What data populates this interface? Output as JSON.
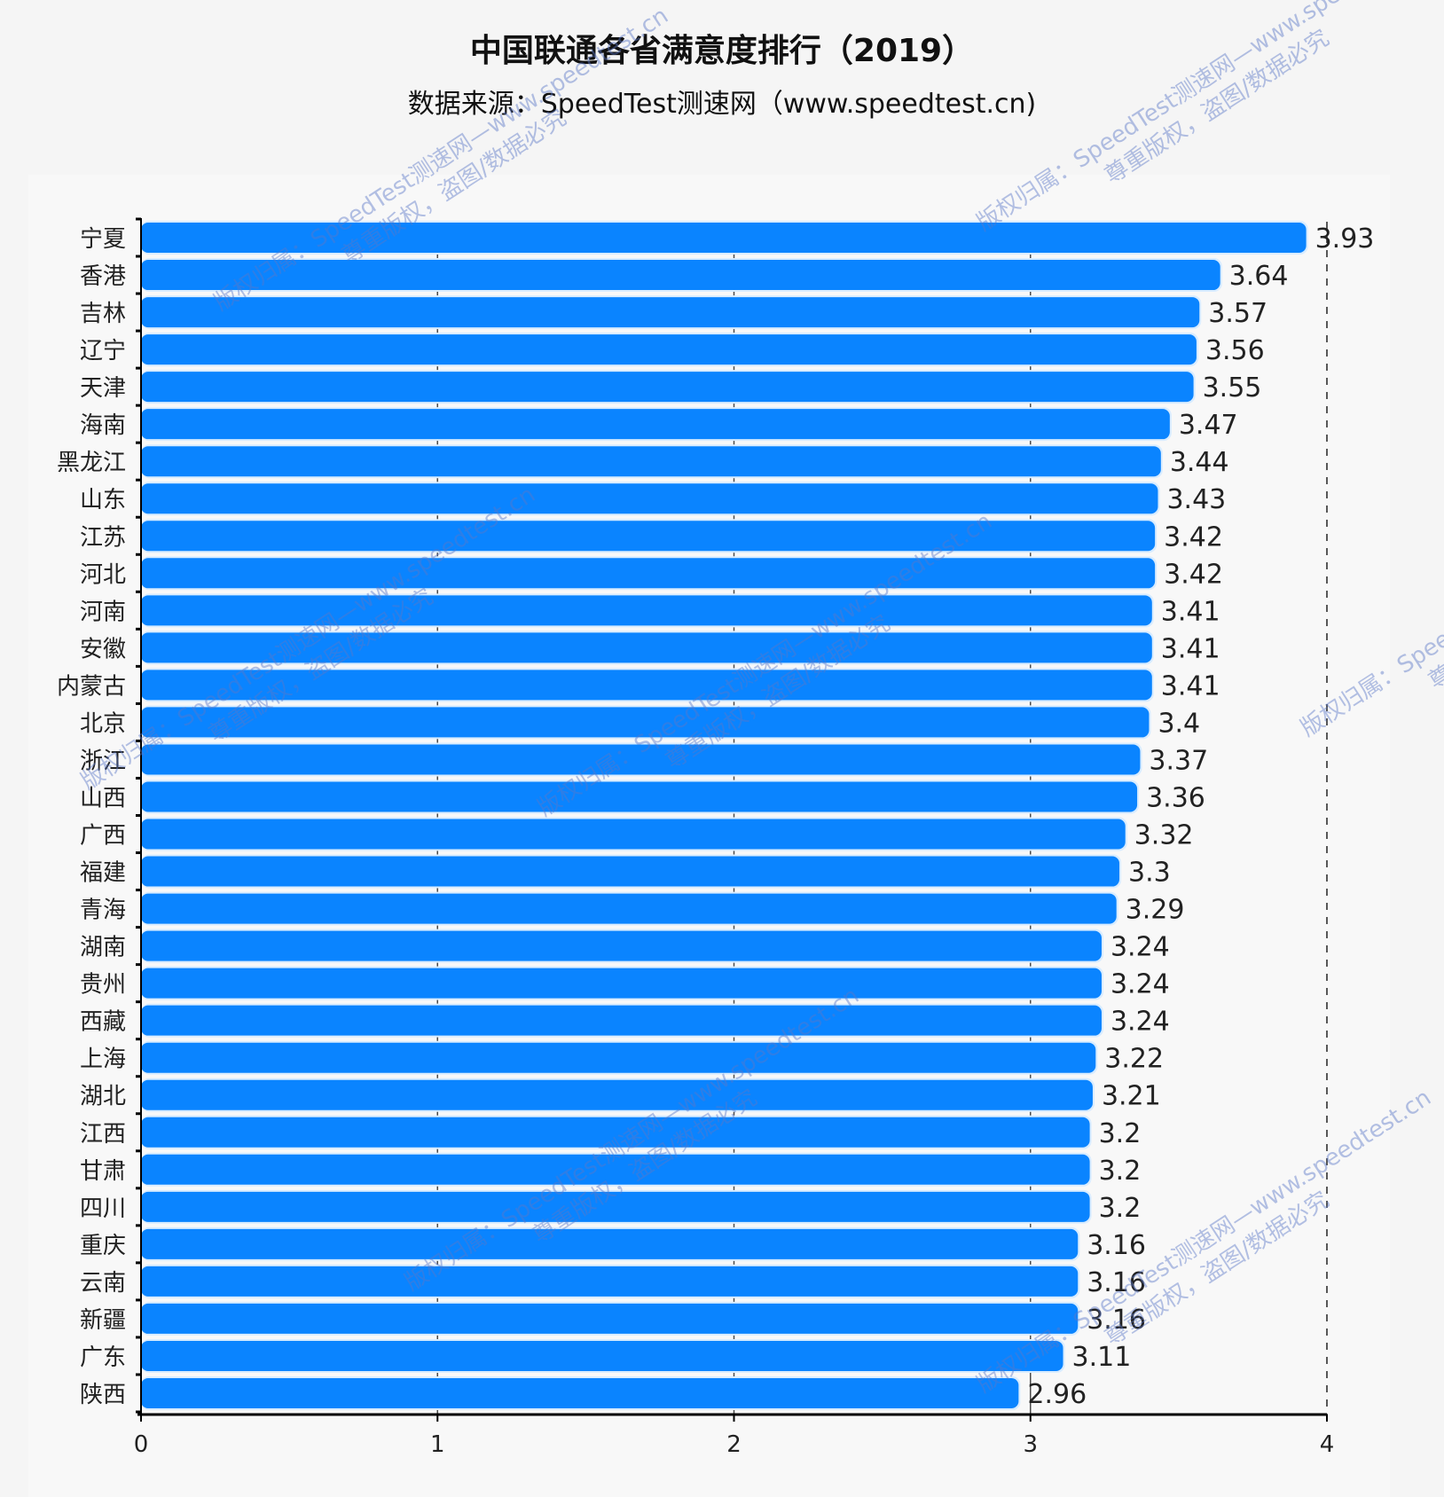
{
  "chart_data": {
    "type": "bar",
    "orientation": "horizontal",
    "title": "中国联通各省满意度排行（2019）",
    "subtitle": "数据来源：SpeedTest测速网（www.speedtest.cn)",
    "categories": [
      "宁夏",
      "香港",
      "吉林",
      "辽宁",
      "天津",
      "海南",
      "黑龙江",
      "山东",
      "江苏",
      "河北",
      "河南",
      "安徽",
      "内蒙古",
      "北京",
      "浙江",
      "山西",
      "广西",
      "福建",
      "青海",
      "湖南",
      "贵州",
      "西藏",
      "上海",
      "湖北",
      "江西",
      "甘肃",
      "四川",
      "重庆",
      "云南",
      "新疆",
      "广东",
      "陕西"
    ],
    "values": [
      3.93,
      3.64,
      3.57,
      3.56,
      3.55,
      3.47,
      3.44,
      3.43,
      3.42,
      3.42,
      3.41,
      3.41,
      3.41,
      3.4,
      3.37,
      3.36,
      3.32,
      3.3,
      3.29,
      3.24,
      3.24,
      3.24,
      3.22,
      3.21,
      3.2,
      3.2,
      3.2,
      3.16,
      3.16,
      3.16,
      3.11,
      2.96
    ],
    "labels": [
      "3.93",
      "3.64",
      "3.57",
      "3.56",
      "3.55",
      "3.47",
      "3.44",
      "3.43",
      "3.42",
      "3.42",
      "3.41",
      "3.41",
      "3.41",
      "3.4",
      "3.37",
      "3.36",
      "3.32",
      "3.3",
      "3.29",
      "3.24",
      "3.24",
      "3.24",
      "3.22",
      "3.21",
      "3.2",
      "3.2",
      "3.2",
      "3.16",
      "3.16",
      "3.16",
      "3.11",
      "2.96"
    ],
    "xlim": [
      0,
      4
    ],
    "xticks": [
      "0",
      "1",
      "2",
      "3",
      "4"
    ],
    "grid": "vertical",
    "bar_color": "#0a84ff",
    "xlabel": "",
    "ylabel": ""
  },
  "watermark": {
    "line1": "版权归属：SpeedTest测速网—www.speedtest.cn",
    "line2": "尊重版权，盗图/数据必究"
  }
}
